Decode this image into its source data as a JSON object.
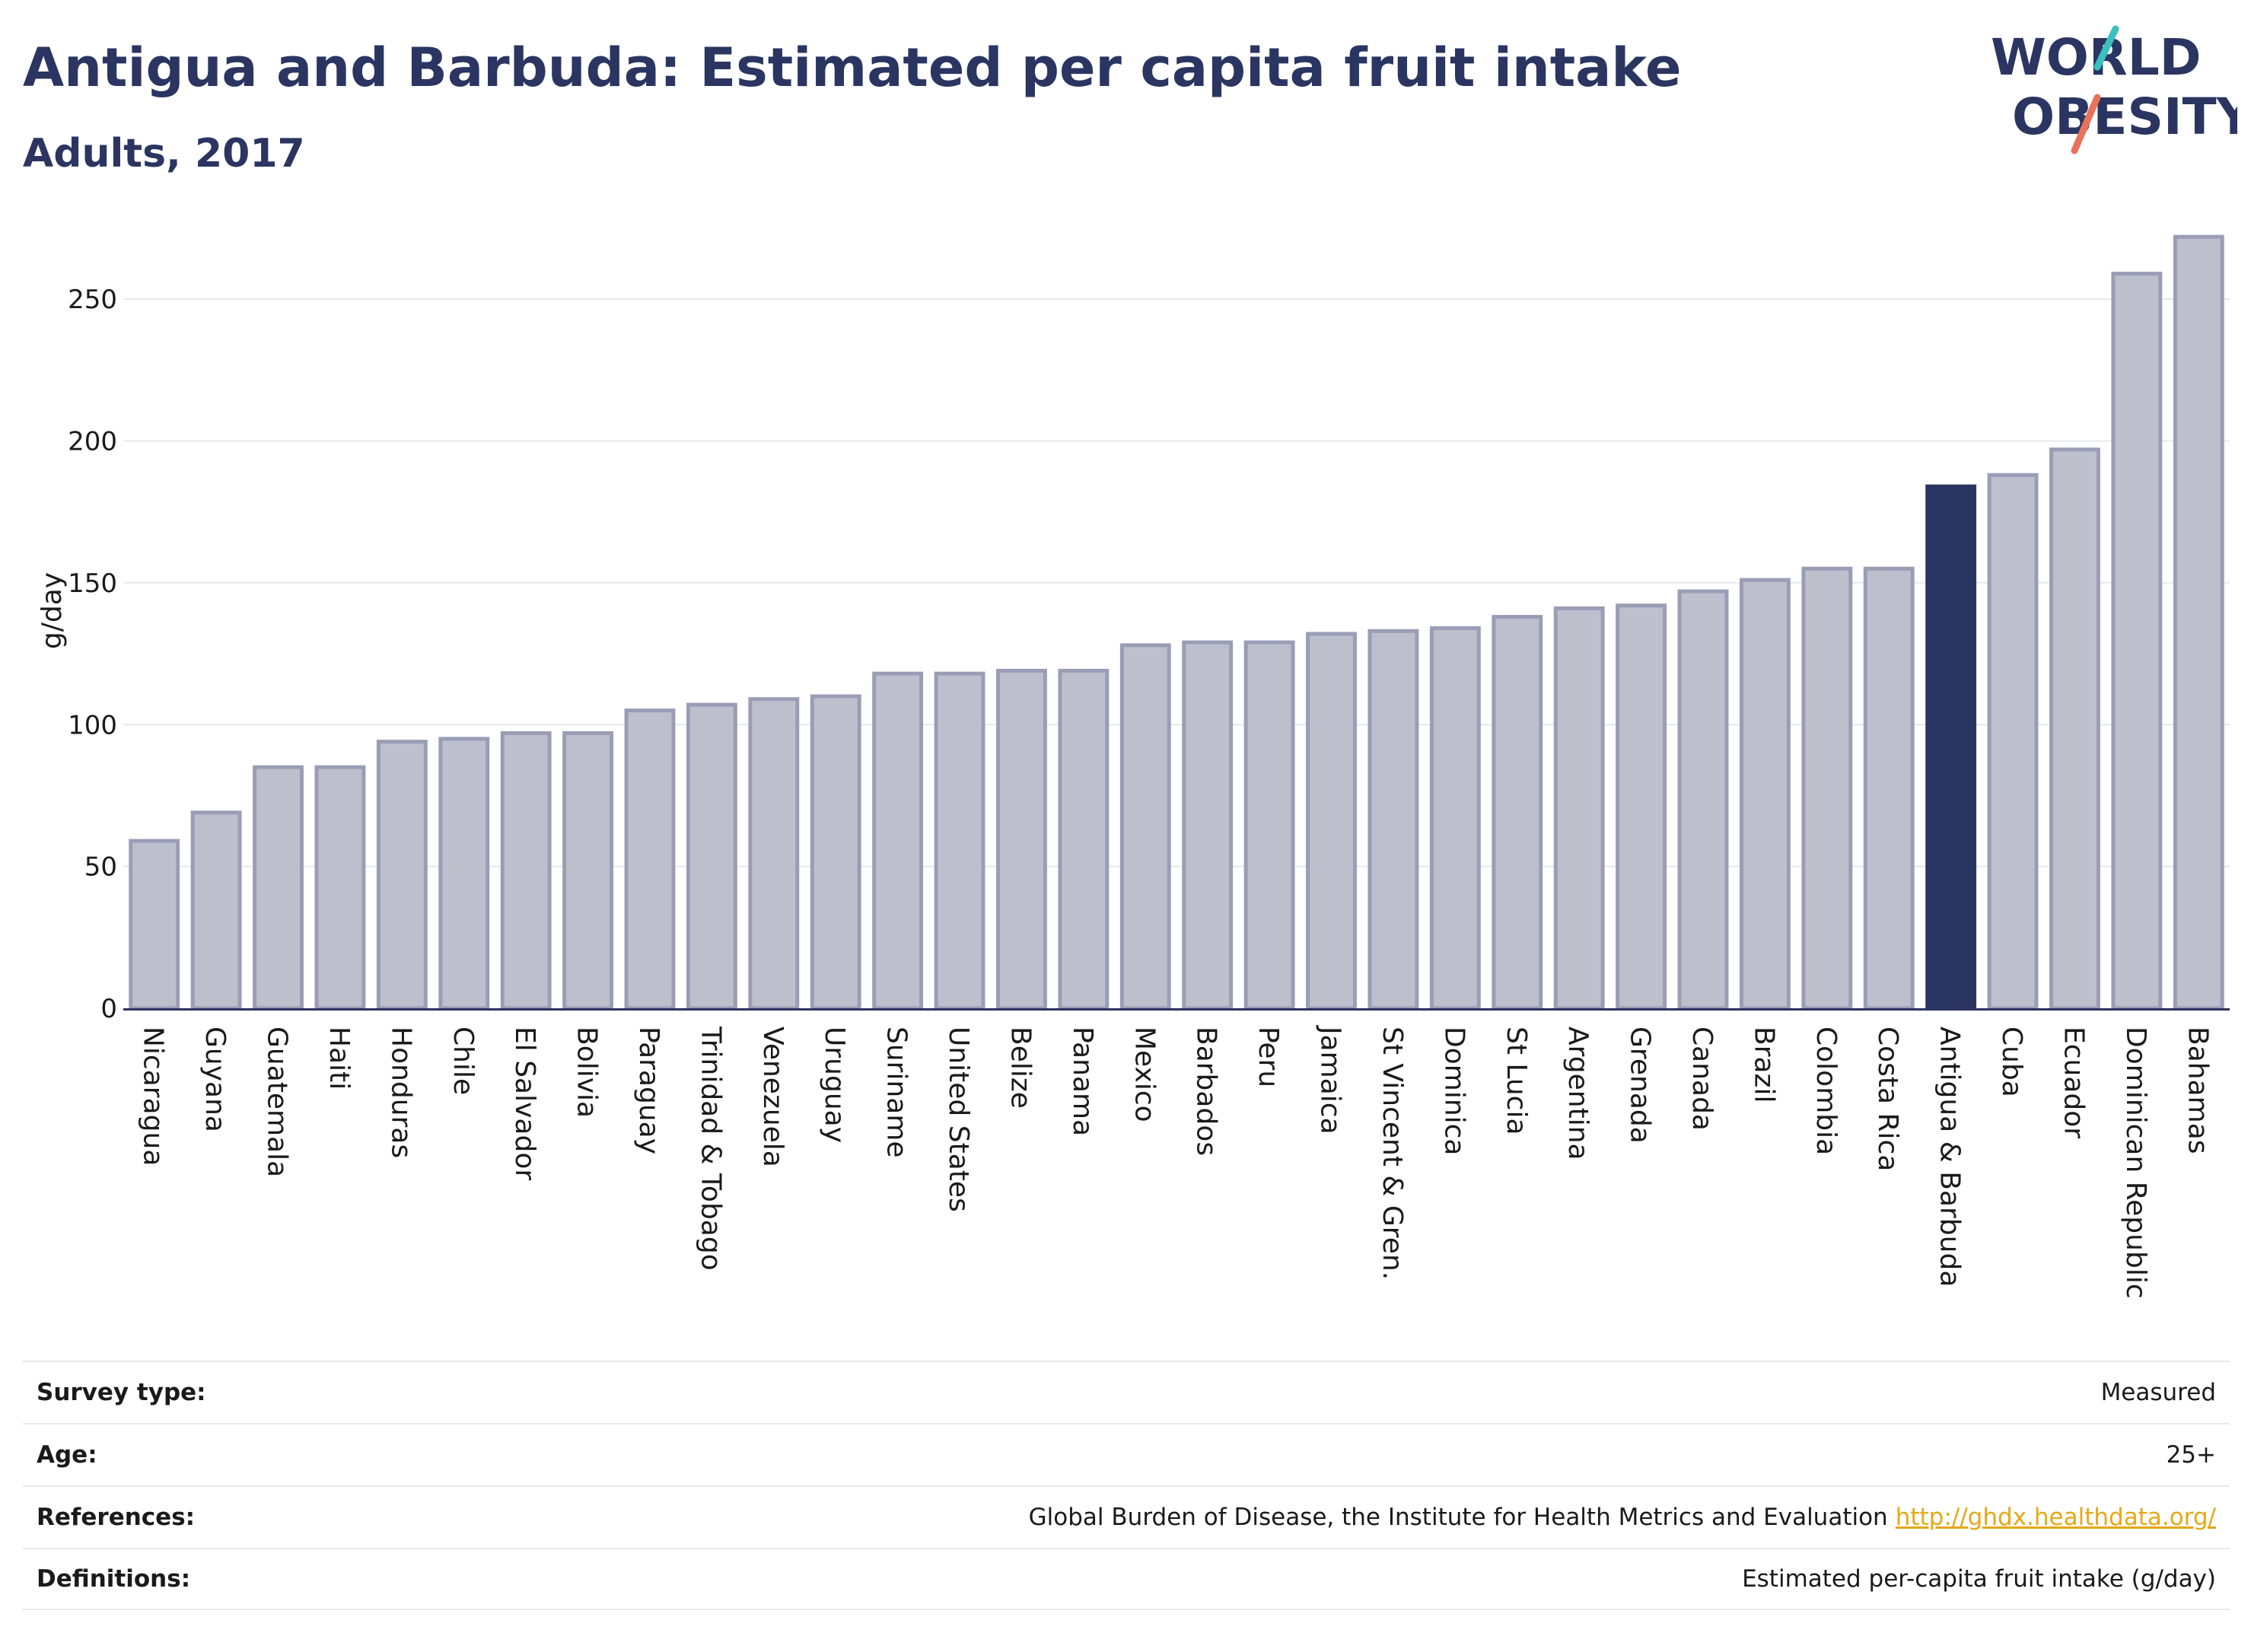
{
  "header": {
    "title": "Antigua and Barbuda: Estimated per capita fruit intake",
    "subtitle": "Adults, 2017"
  },
  "logo": {
    "line1": "WORLD",
    "line2": "OBESITY",
    "colors": {
      "text": "#2b3561",
      "teal": "#3bbfbf",
      "coral": "#e8735a"
    }
  },
  "colors": {
    "bar": "#bdc0cc",
    "bar_border": "#9a9db5",
    "highlight": "#2b3561",
    "gridline": "#e6e8ee",
    "link": "#e6a817"
  },
  "chart_data": {
    "type": "bar",
    "ylabel": "g/day",
    "xlabel": "",
    "ylim": [
      0,
      275
    ],
    "yticks": [
      0,
      50,
      100,
      150,
      200,
      250
    ],
    "grid": true,
    "highlight": "Antigua & Barbuda",
    "categories": [
      "Nicaragua",
      "Guyana",
      "Guatemala",
      "Haiti",
      "Honduras",
      "Chile",
      "El Salvador",
      "Bolivia",
      "Paraguay",
      "Trinidad & Tobago",
      "Venezuela",
      "Uruguay",
      "Suriname",
      "United States",
      "Belize",
      "Panama",
      "Mexico",
      "Barbados",
      "Peru",
      "Jamaica",
      "St Vincent & Gren.",
      "Dominica",
      "St Lucia",
      "Argentina",
      "Grenada",
      "Canada",
      "Brazil",
      "Colombia",
      "Costa Rica",
      "Antigua & Barbuda",
      "Cuba",
      "Ecuador",
      "Dominican Republic",
      "Bahamas"
    ],
    "values": [
      59,
      69,
      85,
      85,
      94,
      95,
      97,
      97,
      105,
      107,
      109,
      110,
      118,
      118,
      119,
      119,
      128,
      129,
      129,
      132,
      133,
      134,
      138,
      141,
      142,
      147,
      151,
      155,
      155,
      184,
      188,
      197,
      259,
      272
    ]
  },
  "info": [
    {
      "key": "Survey type:",
      "value": "Measured"
    },
    {
      "key": "Age:",
      "value": "25+"
    },
    {
      "key": "References:",
      "value": "Global Burden of Disease, the Institute for Health Metrics and Evaluation",
      "link": "http://ghdx.healthdata.org/"
    },
    {
      "key": "Definitions:",
      "value": "Estimated per-capita fruit intake (g/day)"
    }
  ]
}
